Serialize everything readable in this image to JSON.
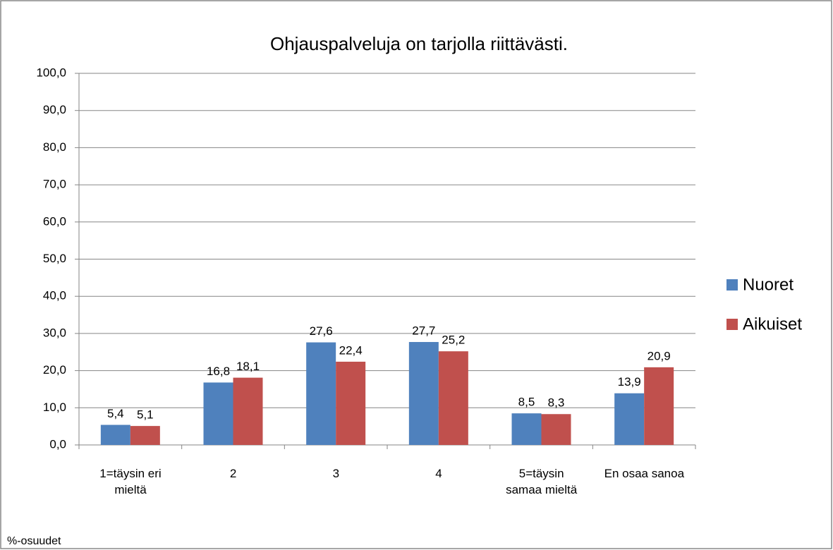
{
  "chart_data": {
    "type": "bar",
    "title": "Ohjauspalveluja on tarjolla riittävästi.",
    "categories": [
      "1=täysin eri\nmieltä",
      "2",
      "3",
      "4",
      "5=täysin\nsamaa mieltä",
      "En osaa sanoa"
    ],
    "series": [
      {
        "name": "Nuoret",
        "color": "#4f81bd",
        "values": [
          5.4,
          16.8,
          27.6,
          27.7,
          8.5,
          13.9
        ],
        "value_labels": [
          "5,4",
          "16,8",
          "27,6",
          "27,7",
          "8,5",
          "13,9"
        ]
      },
      {
        "name": "Aikuiset",
        "color": "#c0504d",
        "values": [
          5.1,
          18.1,
          22.4,
          25.2,
          8.3,
          20.9
        ],
        "value_labels": [
          "5,1",
          "18,1",
          "22,4",
          "25,2",
          "8,3",
          "20,9"
        ]
      }
    ],
    "ylim": [
      0,
      100
    ],
    "yticks": [
      {
        "value": 0,
        "label": "0,0"
      },
      {
        "value": 10,
        "label": "10,0"
      },
      {
        "value": 20,
        "label": "20,0"
      },
      {
        "value": 30,
        "label": "30,0"
      },
      {
        "value": 40,
        "label": "40,0"
      },
      {
        "value": 50,
        "label": "50,0"
      },
      {
        "value": 60,
        "label": "60,0"
      },
      {
        "value": 70,
        "label": "70,0"
      },
      {
        "value": 80,
        "label": "80,0"
      },
      {
        "value": 90,
        "label": "90,0"
      },
      {
        "value": 100,
        "label": "100,0"
      }
    ],
    "grid": true,
    "legend": "right",
    "annotation": "%-osuudet"
  }
}
